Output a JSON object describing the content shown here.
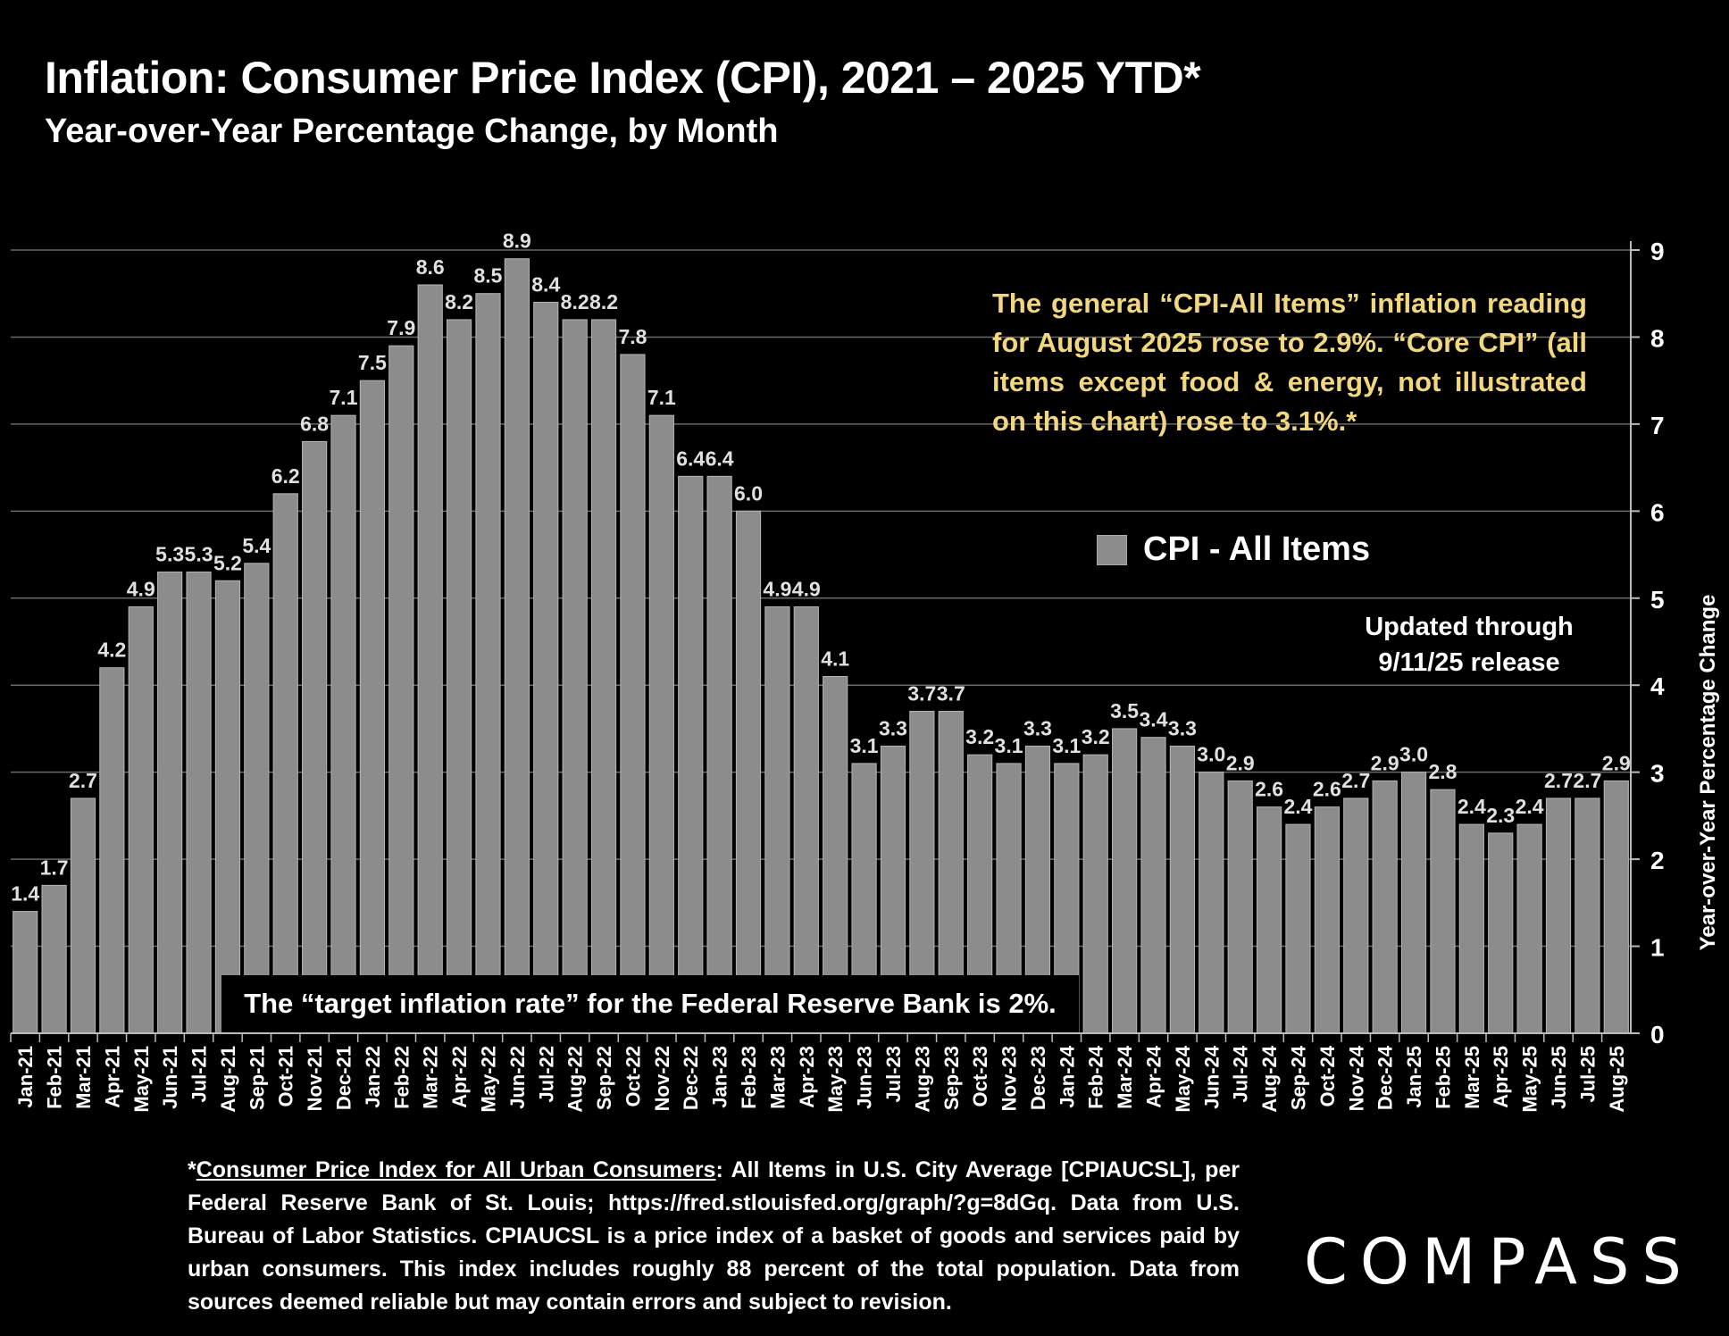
{
  "header": {
    "title": "Inflation: Consumer Price Index (CPI), 2021 – 2025 YTD*",
    "subtitle": "Year-over-Year Percentage Change, by Month"
  },
  "annotations": {
    "note": "The general “CPI-All Items” inflation reading for August 2025 rose to 2.9%. “Core CPI” (all items except food & energy, not illustrated on this chart) rose to 3.1%.*",
    "updated_line1": "Updated through",
    "updated_line2": "9/11/25 release",
    "target": "The “target inflation rate” for the Federal Reserve Bank is 2%."
  },
  "footnote": {
    "source_link": "Consumer Price Index for All Urban Consumers",
    "text": ": All Items in U.S. City Average [CPIAUCSL], per Federal Reserve Bank of St. Louis; https://fred.stlouisfed.org/graph/?g=8dGq. Data from U.S. Bureau of Labor Statistics. CPIAUCSL is a price index of a basket of goods and services paid by urban consumers. This index includes roughly 88 percent of the total population. Data from sources deemed reliable but may contain errors and subject to revision.",
    "prefix": "*"
  },
  "logo": "COMPASS",
  "colors": {
    "bar": "#8c8c8c",
    "background": "#000000",
    "note": "#f3d77f"
  },
  "chart_data": {
    "type": "bar",
    "title": "Inflation: Consumer Price Index (CPI), 2021 – 2025 YTD*",
    "ylabel": "Year-over-Year Percentage Change",
    "ylim": [
      0,
      9
    ],
    "yticks": [
      "0",
      "1",
      "2",
      "3",
      "4",
      "5",
      "6",
      "7",
      "8",
      "9"
    ],
    "grid": true,
    "legend_position": "right",
    "categories": [
      "Jan-21",
      "Feb-21",
      "Mar-21",
      "Apr-21",
      "May-21",
      "Jun-21",
      "Jul-21",
      "Aug-21",
      "Sep-21",
      "Oct-21",
      "Nov-21",
      "Dec-21",
      "Jan-22",
      "Feb-22",
      "Mar-22",
      "Apr-22",
      "May-22",
      "Jun-22",
      "Jul-22",
      "Aug-22",
      "Sep-22",
      "Oct-22",
      "Nov-22",
      "Dec-22",
      "Jan-23",
      "Feb-23",
      "Mar-23",
      "Apr-23",
      "May-23",
      "Jun-23",
      "Jul-23",
      "Aug-23",
      "Sep-23",
      "Oct-23",
      "Nov-23",
      "Dec-23",
      "Jan-24",
      "Feb-24",
      "Mar-24",
      "Apr-24",
      "May-24",
      "Jun-24",
      "Jul-24",
      "Aug-24",
      "Sep-24",
      "Oct-24",
      "Nov-24",
      "Dec-24",
      "Jan-25",
      "Feb-25",
      "Mar-25",
      "Apr-25",
      "May-25",
      "Jun-25",
      "Jul-25",
      "Aug-25"
    ],
    "series": [
      {
        "name": "CPI - All Items",
        "values": [
          1.4,
          1.7,
          2.7,
          4.2,
          4.9,
          5.3,
          5.3,
          5.2,
          5.4,
          6.2,
          6.8,
          7.1,
          7.5,
          7.9,
          8.6,
          8.2,
          8.5,
          8.9,
          8.4,
          8.2,
          8.2,
          7.8,
          7.1,
          6.4,
          6.4,
          6.0,
          4.9,
          4.9,
          4.1,
          3.1,
          3.3,
          3.7,
          3.7,
          3.2,
          3.1,
          3.3,
          3.1,
          3.2,
          3.5,
          3.4,
          3.3,
          3.0,
          2.9,
          2.6,
          2.4,
          2.6,
          2.7,
          2.9,
          3.0,
          2.8,
          2.4,
          2.3,
          2.4,
          2.7,
          2.7,
          2.9
        ],
        "labels": [
          "1.4",
          "1.7",
          "2.7",
          "4.2",
          "4.9",
          "5.3",
          "5.3",
          "5.2",
          "5.4",
          "6.2",
          "6.8",
          "7.1",
          "7.5",
          "7.9",
          "8.6",
          "8.2",
          "8.5",
          "8.9",
          "8.4",
          "8.2",
          "8.2",
          "7.8",
          "7.1",
          "6.4",
          "6.4",
          "6.0",
          "4.9",
          "4.9",
          "4.1",
          "3.1",
          "3.3",
          "3.7",
          "3.7",
          "3.2",
          "3.1",
          "3.3",
          "3.1",
          "3.2",
          "3.5",
          "3.4",
          "3.3",
          "3.0",
          "2.9",
          "2.6",
          "2.4",
          "2.6",
          "2.7",
          "2.9",
          "3.0",
          "2.8",
          "2.4",
          "2.3",
          "2.4",
          "2.7",
          "2.7",
          "2.9"
        ]
      }
    ]
  }
}
